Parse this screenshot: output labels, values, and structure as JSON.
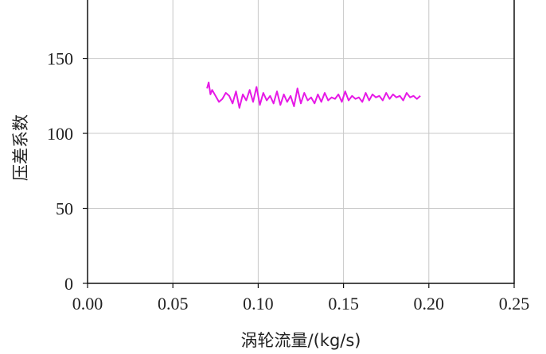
{
  "chart_data": {
    "type": "line",
    "xlabel": "涡轮流量/(kg/s)",
    "ylabel": "压差系数",
    "xlim": [
      0,
      0.25
    ],
    "ylim": [
      0,
      190
    ],
    "x_ticks": [
      "0.00",
      "0.05",
      "0.10",
      "0.15",
      "0.20",
      "0.25"
    ],
    "y_ticks": [
      "0",
      "50",
      "100",
      "150"
    ],
    "grid": true,
    "series": [
      {
        "color": "#e619e6",
        "x": [
          0.07,
          0.071,
          0.072,
          0.073,
          0.075,
          0.077,
          0.079,
          0.081,
          0.083,
          0.085,
          0.087,
          0.089,
          0.091,
          0.093,
          0.095,
          0.097,
          0.099,
          0.101,
          0.103,
          0.105,
          0.107,
          0.109,
          0.111,
          0.113,
          0.115,
          0.117,
          0.119,
          0.121,
          0.123,
          0.125,
          0.127,
          0.129,
          0.131,
          0.133,
          0.135,
          0.137,
          0.139,
          0.141,
          0.143,
          0.145,
          0.147,
          0.149,
          0.151,
          0.153,
          0.155,
          0.157,
          0.159,
          0.161,
          0.163,
          0.165,
          0.167,
          0.169,
          0.171,
          0.173,
          0.175,
          0.177,
          0.179,
          0.181,
          0.183,
          0.185,
          0.187,
          0.189,
          0.191,
          0.193,
          0.195
        ],
        "y": [
          130,
          134,
          126,
          129,
          125,
          121,
          123,
          127,
          125,
          120,
          128,
          117,
          126,
          122,
          129,
          121,
          131,
          119,
          127,
          122,
          125,
          120,
          128,
          119,
          126,
          121,
          125,
          118,
          130,
          120,
          127,
          122,
          124,
          120,
          126,
          121,
          127,
          122,
          124,
          123,
          126,
          121,
          128,
          122,
          125,
          123,
          124,
          121,
          127,
          122,
          126,
          124,
          125,
          122,
          127,
          123,
          126,
          124,
          125,
          122,
          127,
          124,
          125,
          123,
          125
        ]
      }
    ]
  }
}
